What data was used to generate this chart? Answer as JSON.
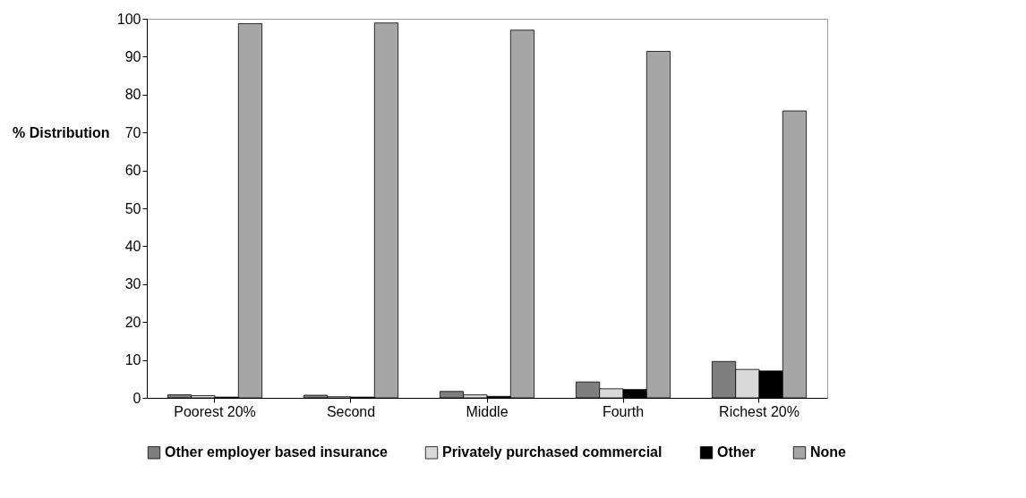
{
  "chart_data": {
    "type": "bar",
    "ylabel": "% Distribution",
    "categories": [
      "Poorest 20%",
      "Second",
      "Middle",
      "Fourth",
      "Richest 20%"
    ],
    "ylim": [
      0,
      100
    ],
    "yticks": [
      0,
      10,
      20,
      30,
      40,
      50,
      60,
      70,
      80,
      90,
      100
    ],
    "grid": false,
    "legend": "bottom",
    "series": [
      {
        "name": "Other employer based insurance",
        "color": "#7f7f7f",
        "values": [
          0.8,
          0.7,
          1.7,
          4.2,
          9.6
        ]
      },
      {
        "name": "Privately purchased commercial",
        "color": "#d9d9d9",
        "values": [
          0.6,
          0.3,
          0.8,
          2.4,
          7.5
        ]
      },
      {
        "name": "Other",
        "color": "#000000",
        "values": [
          0.2,
          0.2,
          0.4,
          2.2,
          7.1
        ]
      },
      {
        "name": "None",
        "color": "#a6a6a6",
        "values": [
          98.7,
          98.9,
          97.0,
          91.4,
          75.7
        ]
      }
    ]
  }
}
